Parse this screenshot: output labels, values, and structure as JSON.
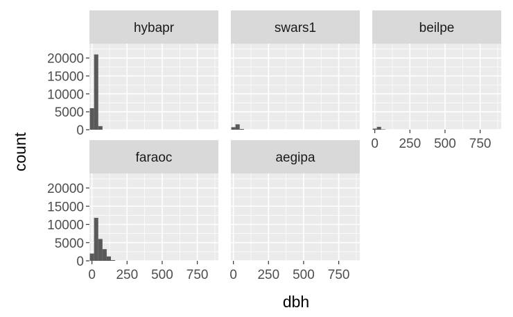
{
  "chart_data": {
    "type": "bar",
    "subtype": "faceted-histogram",
    "xlabel": "dbh",
    "ylabel": "count",
    "xlim": [
      -18,
      900
    ],
    "ylim": [
      0,
      24000
    ],
    "x_ticks": [
      0,
      250,
      500,
      750
    ],
    "y_ticks": [
      0,
      5000,
      10000,
      15000,
      20000
    ],
    "bin_width": 30,
    "grid": true,
    "legend": "none",
    "colors": {
      "bar": "#595959",
      "panel_bg": "#ebebeb",
      "strip_bg": "#d9d9d9",
      "grid": "#ffffff"
    },
    "panels": [
      {
        "name": "hybapr",
        "bins": [
          [
            0,
            6000
          ],
          [
            30,
            21000
          ],
          [
            60,
            1000
          ]
        ]
      },
      {
        "name": "swars1",
        "bins": [
          [
            0,
            700
          ],
          [
            30,
            1500
          ],
          [
            60,
            200
          ]
        ]
      },
      {
        "name": "beilpe",
        "bins": [
          [
            0,
            300
          ],
          [
            30,
            800
          ],
          [
            60,
            100
          ]
        ]
      },
      {
        "name": "faraoc",
        "bins": [
          [
            0,
            2000
          ],
          [
            30,
            11800
          ],
          [
            60,
            6000
          ],
          [
            90,
            3200
          ],
          [
            120,
            1200
          ],
          [
            150,
            200
          ]
        ]
      },
      {
        "name": "aegipa",
        "bins": []
      }
    ]
  }
}
